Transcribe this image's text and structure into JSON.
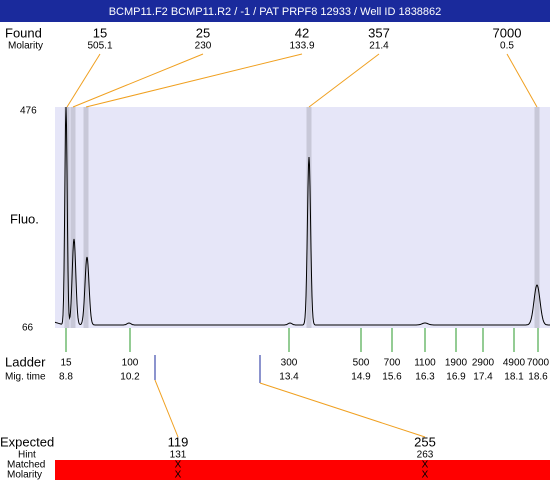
{
  "header": {
    "title": "BCMP11.F2  BCMP11.R2 / -1 / PAT PRPF8 12933 / Well ID 1838862"
  },
  "found": {
    "label": "Found",
    "sublabel": "Molarity",
    "items": [
      {
        "size": 15,
        "molarity": 505.1
      },
      {
        "size": 25,
        "molarity": 230
      },
      {
        "size": 42,
        "molarity": 133.9
      },
      {
        "size": 357,
        "molarity": 21.4
      },
      {
        "size": 7000,
        "molarity": 0.5
      }
    ]
  },
  "plot": {
    "y_label": "Fluo.",
    "y_top": 476,
    "y_bottom": 66
  },
  "ladder": {
    "label": "Ladder",
    "sublabel": "Mig. time",
    "items": [
      {
        "size": 15,
        "time": 8.8
      },
      {
        "size": 100,
        "time": 10.2
      },
      {
        "size": 300,
        "time": 13.4
      },
      {
        "size": 500,
        "time": 14.9
      },
      {
        "size": 700,
        "time": 15.6
      },
      {
        "size": 1100,
        "time": 16.3
      },
      {
        "size": 1900,
        "time": 16.9
      },
      {
        "size": 2900,
        "time": 17.4
      },
      {
        "size": 4900,
        "time": 18.1
      },
      {
        "size": 7000,
        "time": 18.6
      }
    ]
  },
  "expected": {
    "label": "Expected",
    "hint_label": "Hint",
    "matched_label": "Matched",
    "molarity_label": "Molarity",
    "items": [
      {
        "size": 119,
        "hint": 131,
        "matched": "X",
        "molarity": "X"
      },
      {
        "size": 255,
        "hint": 263,
        "matched": "X",
        "molarity": "X"
      }
    ]
  }
}
